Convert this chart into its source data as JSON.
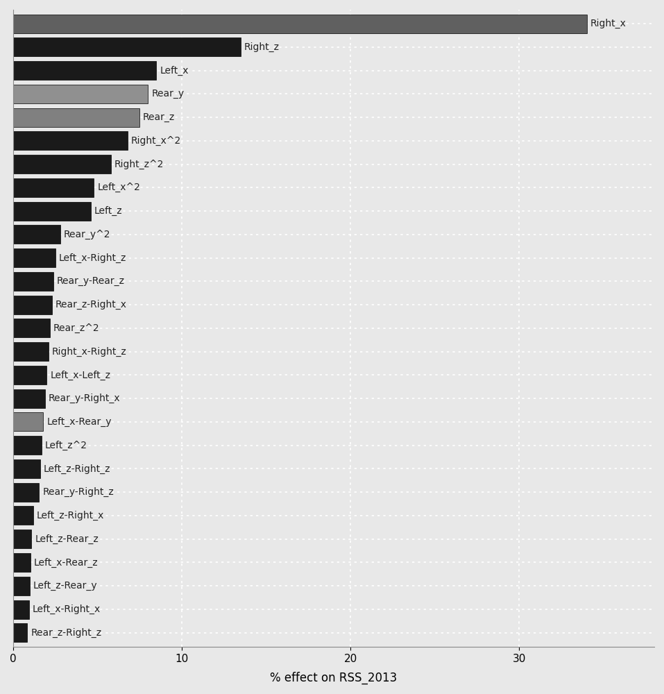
{
  "categories": [
    "Right_x",
    "Right_z",
    "Left_x",
    "Rear_y",
    "Rear_z",
    "Right_x^2",
    "Right_z^2",
    "Left_x^2",
    "Left_z",
    "Rear_y^2",
    "Left_x-Right_z",
    "Rear_y-Rear_z",
    "Rear_z-Right_x",
    "Rear_z^2",
    "Right_x-Right_z",
    "Left_x-Left_z",
    "Rear_y-Right_x",
    "Left_x-Rear_y",
    "Left_z^2",
    "Left_z-Right_z",
    "Rear_y-Right_z",
    "Left_z-Right_x",
    "Left_z-Rear_z",
    "Left_x-Rear_z",
    "Left_z-Rear_y",
    "Left_x-Right_x",
    "Rear_z-Right_z"
  ],
  "values": [
    34.0,
    13.5,
    8.5,
    8.0,
    7.5,
    6.8,
    5.8,
    4.8,
    4.6,
    2.8,
    2.5,
    2.4,
    2.3,
    2.2,
    2.1,
    2.0,
    1.9,
    1.8,
    1.7,
    1.6,
    1.55,
    1.2,
    1.1,
    1.05,
    1.0,
    0.95,
    0.85
  ],
  "colors": [
    "#606060",
    "#1a1a1a",
    "#1a1a1a",
    "#909090",
    "#808080",
    "#1a1a1a",
    "#1a1a1a",
    "#1a1a1a",
    "#1a1a1a",
    "#1a1a1a",
    "#1a1a1a",
    "#1a1a1a",
    "#1a1a1a",
    "#1a1a1a",
    "#1a1a1a",
    "#1a1a1a",
    "#1a1a1a",
    "#808080",
    "#1a1a1a",
    "#1a1a1a",
    "#1a1a1a",
    "#1a1a1a",
    "#1a1a1a",
    "#1a1a1a",
    "#1a1a1a",
    "#1a1a1a",
    "#1a1a1a"
  ],
  "xlabel": "% effect on RSS_2013",
  "xlim": [
    0,
    38
  ],
  "xlabel_fontsize": 12,
  "label_fontsize": 10,
  "tick_fontsize": 11,
  "bg_color": "#e8e8e8",
  "grid_color": "#ffffff",
  "bar_edge_color": "#000000",
  "xticks": [
    0,
    10,
    20,
    30
  ]
}
